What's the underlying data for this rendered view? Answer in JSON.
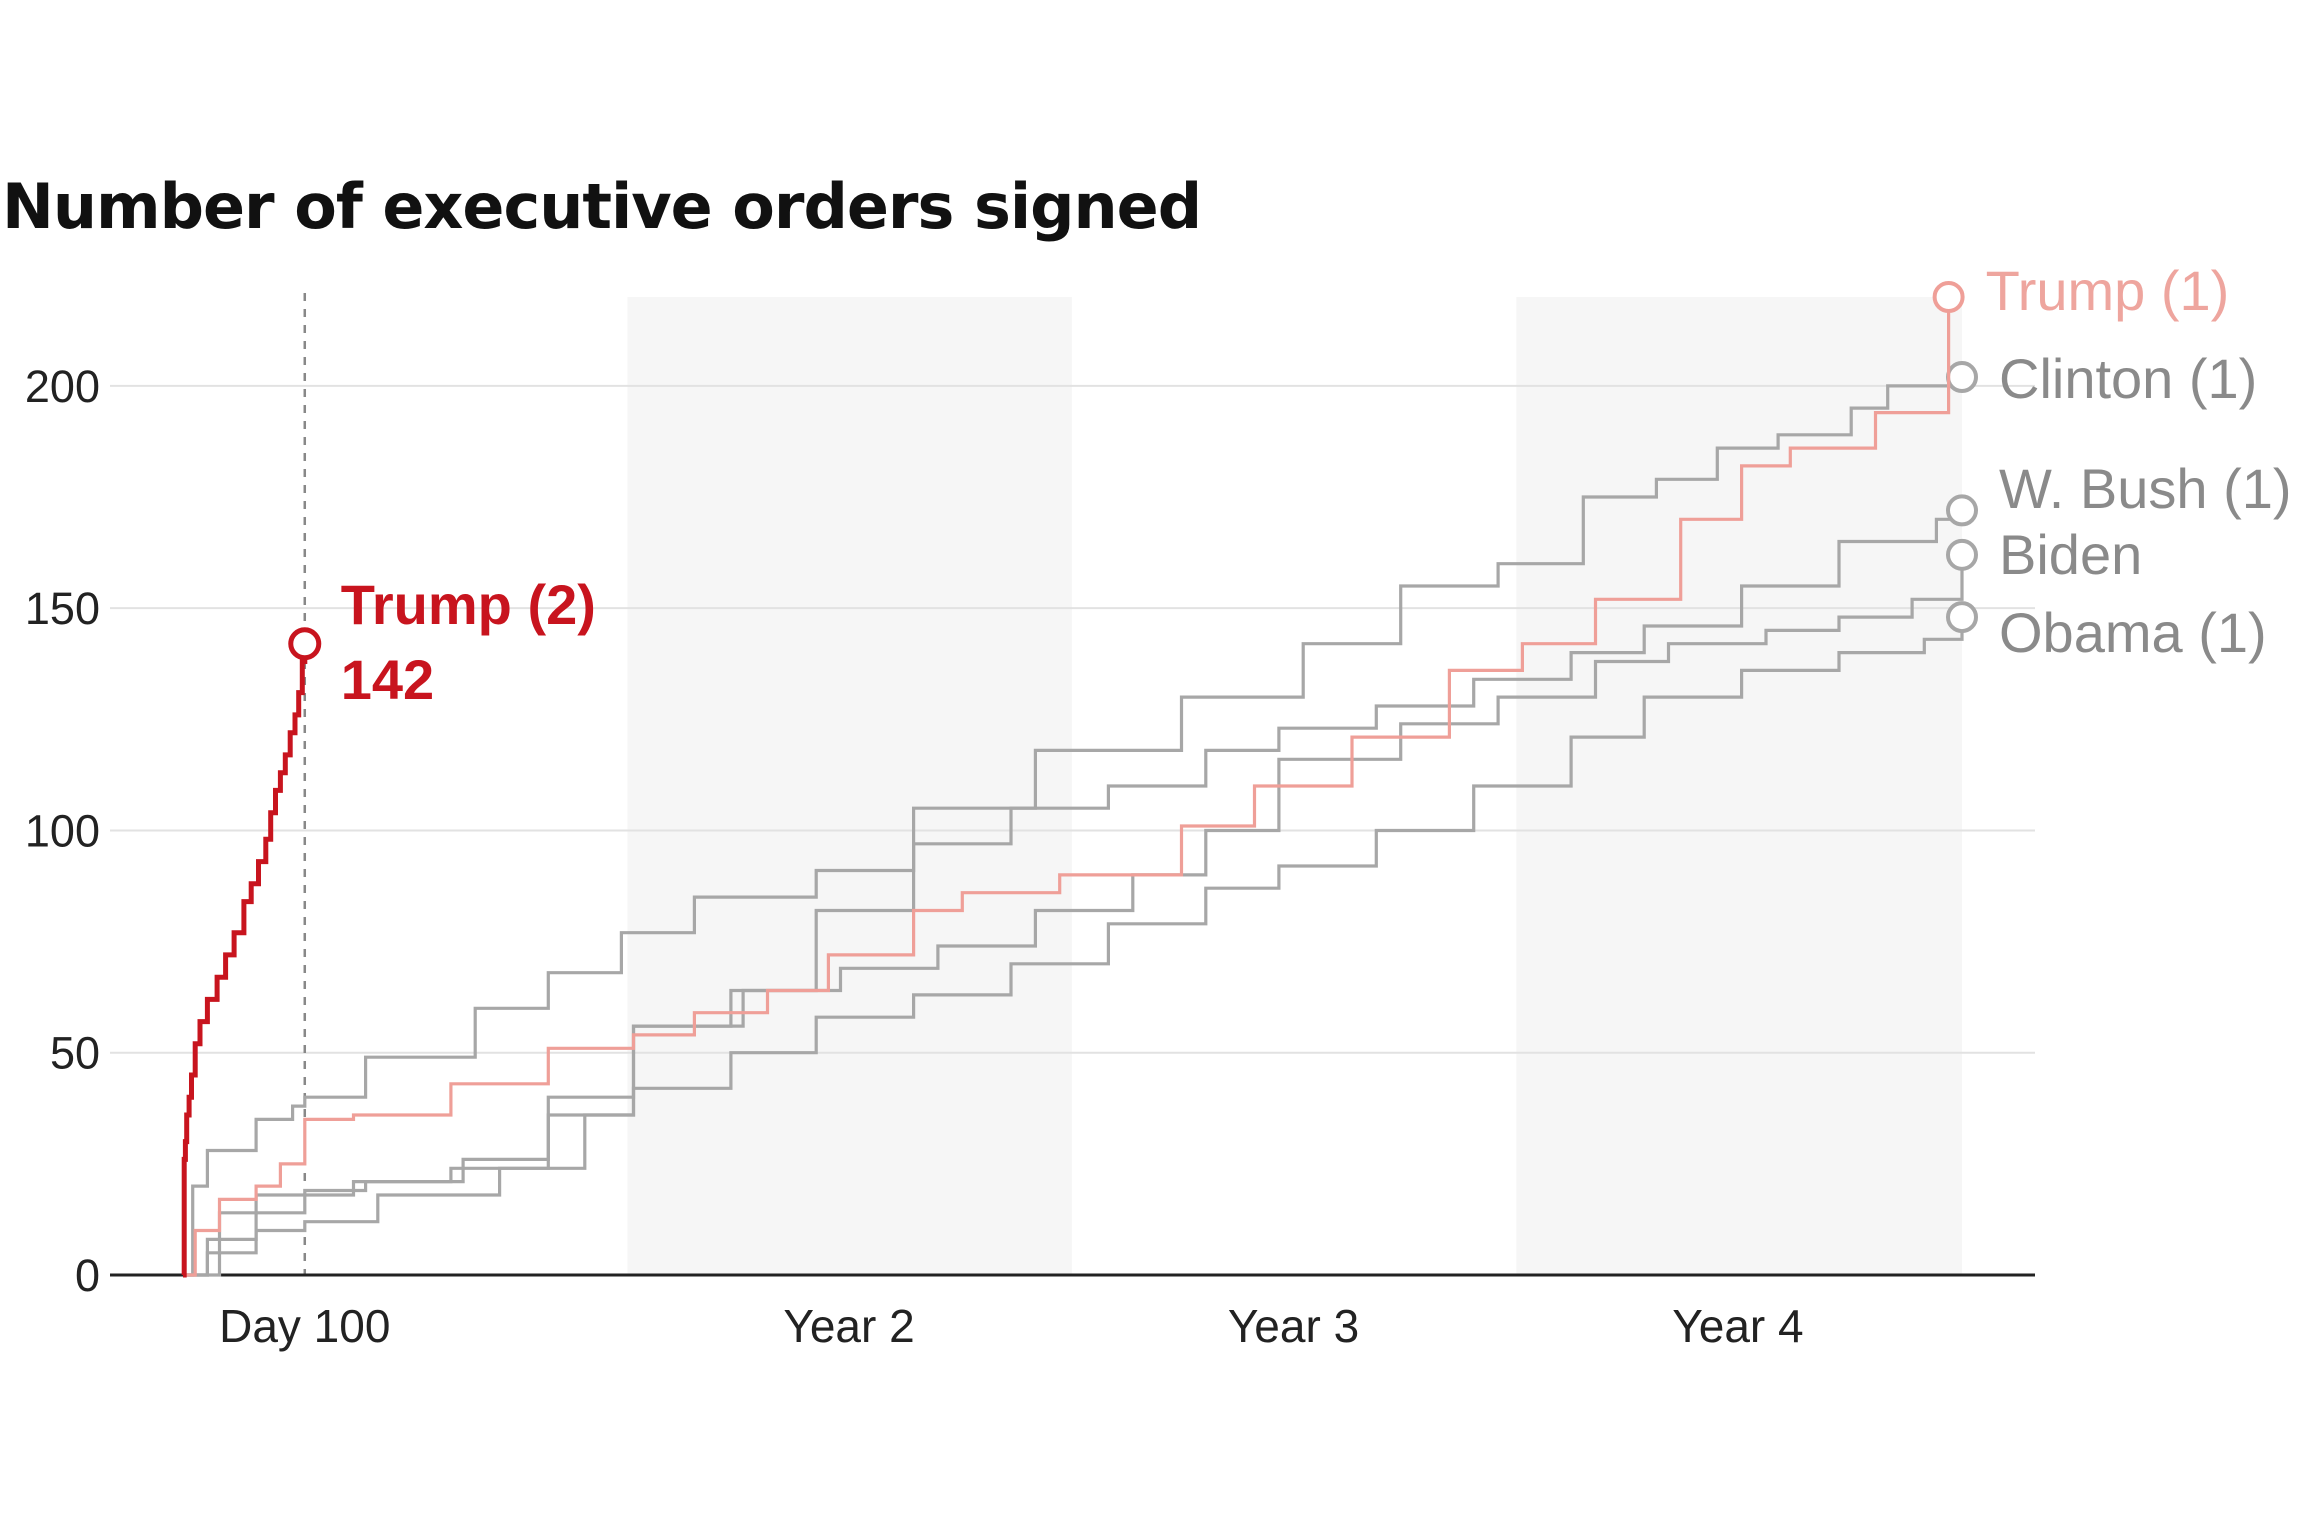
{
  "chart_data": {
    "type": "line",
    "title": "Number of executive orders signed",
    "xlabel": "",
    "ylabel": "",
    "ylim": [
      0,
      220
    ],
    "xlim": [
      0,
      1461
    ],
    "grid": true,
    "x_units": "days in office",
    "y_ticks": [
      0,
      50,
      100,
      150,
      200
    ],
    "x_ticks": [
      {
        "value": 100,
        "label": "Day 100"
      },
      {
        "value": 547,
        "label": "Year 2"
      },
      {
        "value": 912,
        "label": "Year 3"
      },
      {
        "value": 1277,
        "label": "Year 4"
      }
    ],
    "shaded_bands": [
      [
        365,
        730
      ],
      [
        1095,
        1461
      ]
    ],
    "reference_line": {
      "x": 100
    },
    "series": [
      {
        "name": "Trump (2)",
        "value_label": "142",
        "color": "#c8141e",
        "emphasis": true,
        "x": [
          0,
          1,
          2,
          3,
          5,
          7,
          10,
          14,
          20,
          28,
          35,
          42,
          50,
          56,
          62,
          68,
          72,
          76,
          80,
          84,
          88,
          92,
          95,
          98,
          100
        ],
        "y": [
          0,
          26,
          30,
          36,
          40,
          45,
          52,
          57,
          62,
          67,
          72,
          77,
          84,
          88,
          93,
          98,
          104,
          109,
          113,
          117,
          122,
          126,
          131,
          138,
          142
        ]
      },
      {
        "name": "Trump (1)",
        "color": "#ef9f98",
        "emphasis": false,
        "x": [
          0,
          10,
          30,
          60,
          80,
          100,
          140,
          220,
          300,
          370,
          420,
          480,
          530,
          600,
          640,
          720,
          820,
          880,
          960,
          1040,
          1100,
          1160,
          1230,
          1280,
          1320,
          1390,
          1450
        ],
        "y": [
          0,
          10,
          17,
          20,
          25,
          35,
          36,
          43,
          51,
          54,
          59,
          64,
          72,
          82,
          86,
          90,
          101,
          110,
          121,
          136,
          142,
          152,
          170,
          182,
          186,
          194,
          220
        ]
      },
      {
        "name": "Clinton (1)",
        "color": "#a7a7a7",
        "emphasis": false,
        "x": [
          0,
          8,
          20,
          60,
          90,
          100,
          150,
          240,
          300,
          360,
          420,
          520,
          600,
          700,
          820,
          920,
          1000,
          1080,
          1150,
          1210,
          1260,
          1310,
          1370,
          1400,
          1461
        ],
        "y": [
          0,
          20,
          28,
          35,
          38,
          40,
          49,
          60,
          68,
          77,
          85,
          91,
          105,
          118,
          130,
          142,
          155,
          160,
          175,
          179,
          186,
          189,
          195,
          200,
          202
        ]
      },
      {
        "name": "W. Bush (1)",
        "color": "#a7a7a7",
        "emphasis": false,
        "x": [
          0,
          20,
          60,
          100,
          140,
          220,
          300,
          370,
          450,
          520,
          600,
          680,
          760,
          840,
          900,
          980,
          1060,
          1140,
          1200,
          1280,
          1360,
          1440,
          1461
        ],
        "y": [
          0,
          8,
          14,
          18,
          21,
          24,
          36,
          56,
          64,
          82,
          97,
          105,
          110,
          118,
          123,
          128,
          134,
          140,
          146,
          155,
          165,
          170,
          172
        ]
      },
      {
        "name": "Biden",
        "color": "#a7a7a7",
        "emphasis": false,
        "x": [
          0,
          30,
          60,
          100,
          150,
          230,
          300,
          370,
          460,
          540,
          620,
          700,
          780,
          840,
          900,
          1000,
          1080,
          1160,
          1220,
          1300,
          1360,
          1420,
          1461
        ],
        "y": [
          0,
          14,
          18,
          19,
          21,
          26,
          40,
          56,
          64,
          69,
          74,
          82,
          90,
          100,
          116,
          124,
          130,
          138,
          142,
          145,
          148,
          152,
          162
        ]
      },
      {
        "name": "Obama (1)",
        "color": "#a7a7a7",
        "emphasis": false,
        "x": [
          0,
          20,
          60,
          100,
          160,
          260,
          330,
          370,
          450,
          520,
          600,
          680,
          760,
          840,
          900,
          980,
          1060,
          1140,
          1200,
          1280,
          1360,
          1430,
          1461
        ],
        "y": [
          0,
          5,
          10,
          12,
          18,
          24,
          36,
          42,
          50,
          58,
          63,
          70,
          79,
          87,
          92,
          100,
          110,
          121,
          130,
          136,
          140,
          143,
          148
        ]
      }
    ]
  }
}
